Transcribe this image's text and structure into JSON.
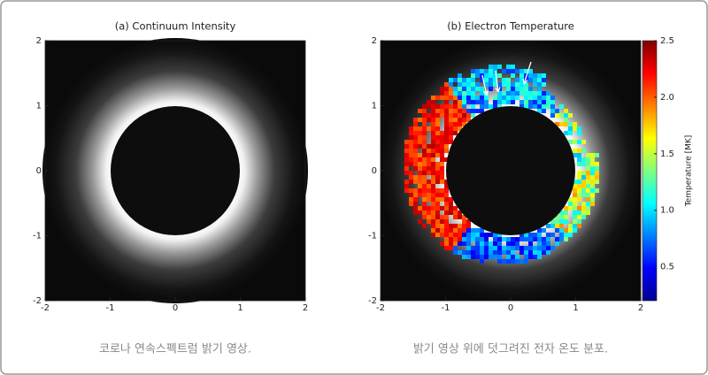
{
  "panels": [
    {
      "title": "(a) Continuum Intensity",
      "xlim": [
        -2,
        2
      ],
      "ylim": [
        -2,
        2
      ],
      "xticks": [
        -2,
        -1,
        0,
        1,
        2
      ],
      "yticks": [
        -2,
        -1,
        0,
        1,
        2
      ],
      "caption": "코로나 연속스펙트럼 밝기 영상."
    },
    {
      "title": "(b) Electron Temperature",
      "xlim": [
        -2,
        2
      ],
      "ylim": [
        -2,
        2
      ],
      "xticks": [
        -2,
        -1,
        0,
        1,
        2
      ],
      "yticks": [
        -2,
        -1,
        0,
        1,
        2
      ],
      "caption": "밝기 영상 위에 덧그려진 전자 온도 분포.",
      "colorbar": {
        "label": "Temperature [MK]",
        "lim": [
          0.2,
          2.5
        ],
        "ticks": [
          0.5,
          {
            "value": 1,
            "label": "1.0"
          },
          1.5,
          {
            "value": 2,
            "label": "2.0"
          },
          2.5
        ]
      }
    }
  ]
}
